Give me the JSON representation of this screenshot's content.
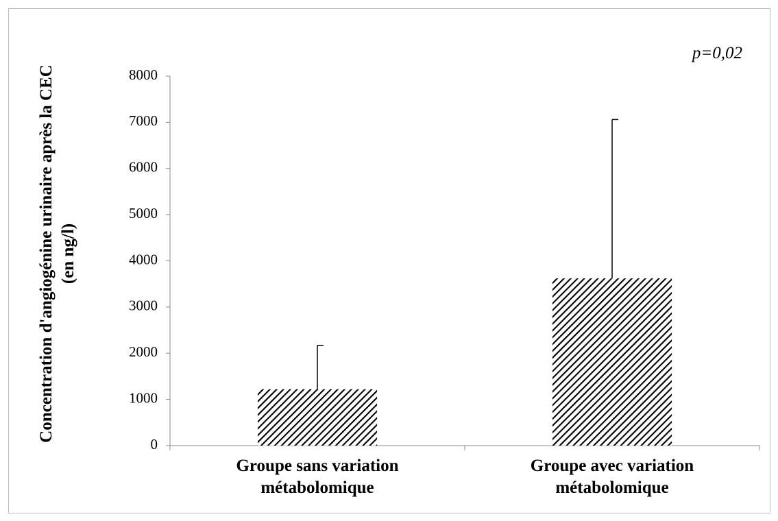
{
  "chart_data": {
    "type": "bar",
    "annotation": "p=0,02",
    "ylabel": "Concentration d'angiogénine urinaire après la CEC (en ng/l)",
    "categories": [
      "Groupe sans variation métabolomique",
      "Groupe avec variation métabolomique"
    ],
    "values": [
      1220,
      3620
    ],
    "errors": [
      950,
      3440
    ],
    "color": "#000000",
    "ylim": [
      0,
      8000
    ],
    "yticks": [
      0,
      1000,
      2000,
      3000,
      4000,
      5000,
      6000,
      7000,
      8000
    ],
    "grid": false
  }
}
